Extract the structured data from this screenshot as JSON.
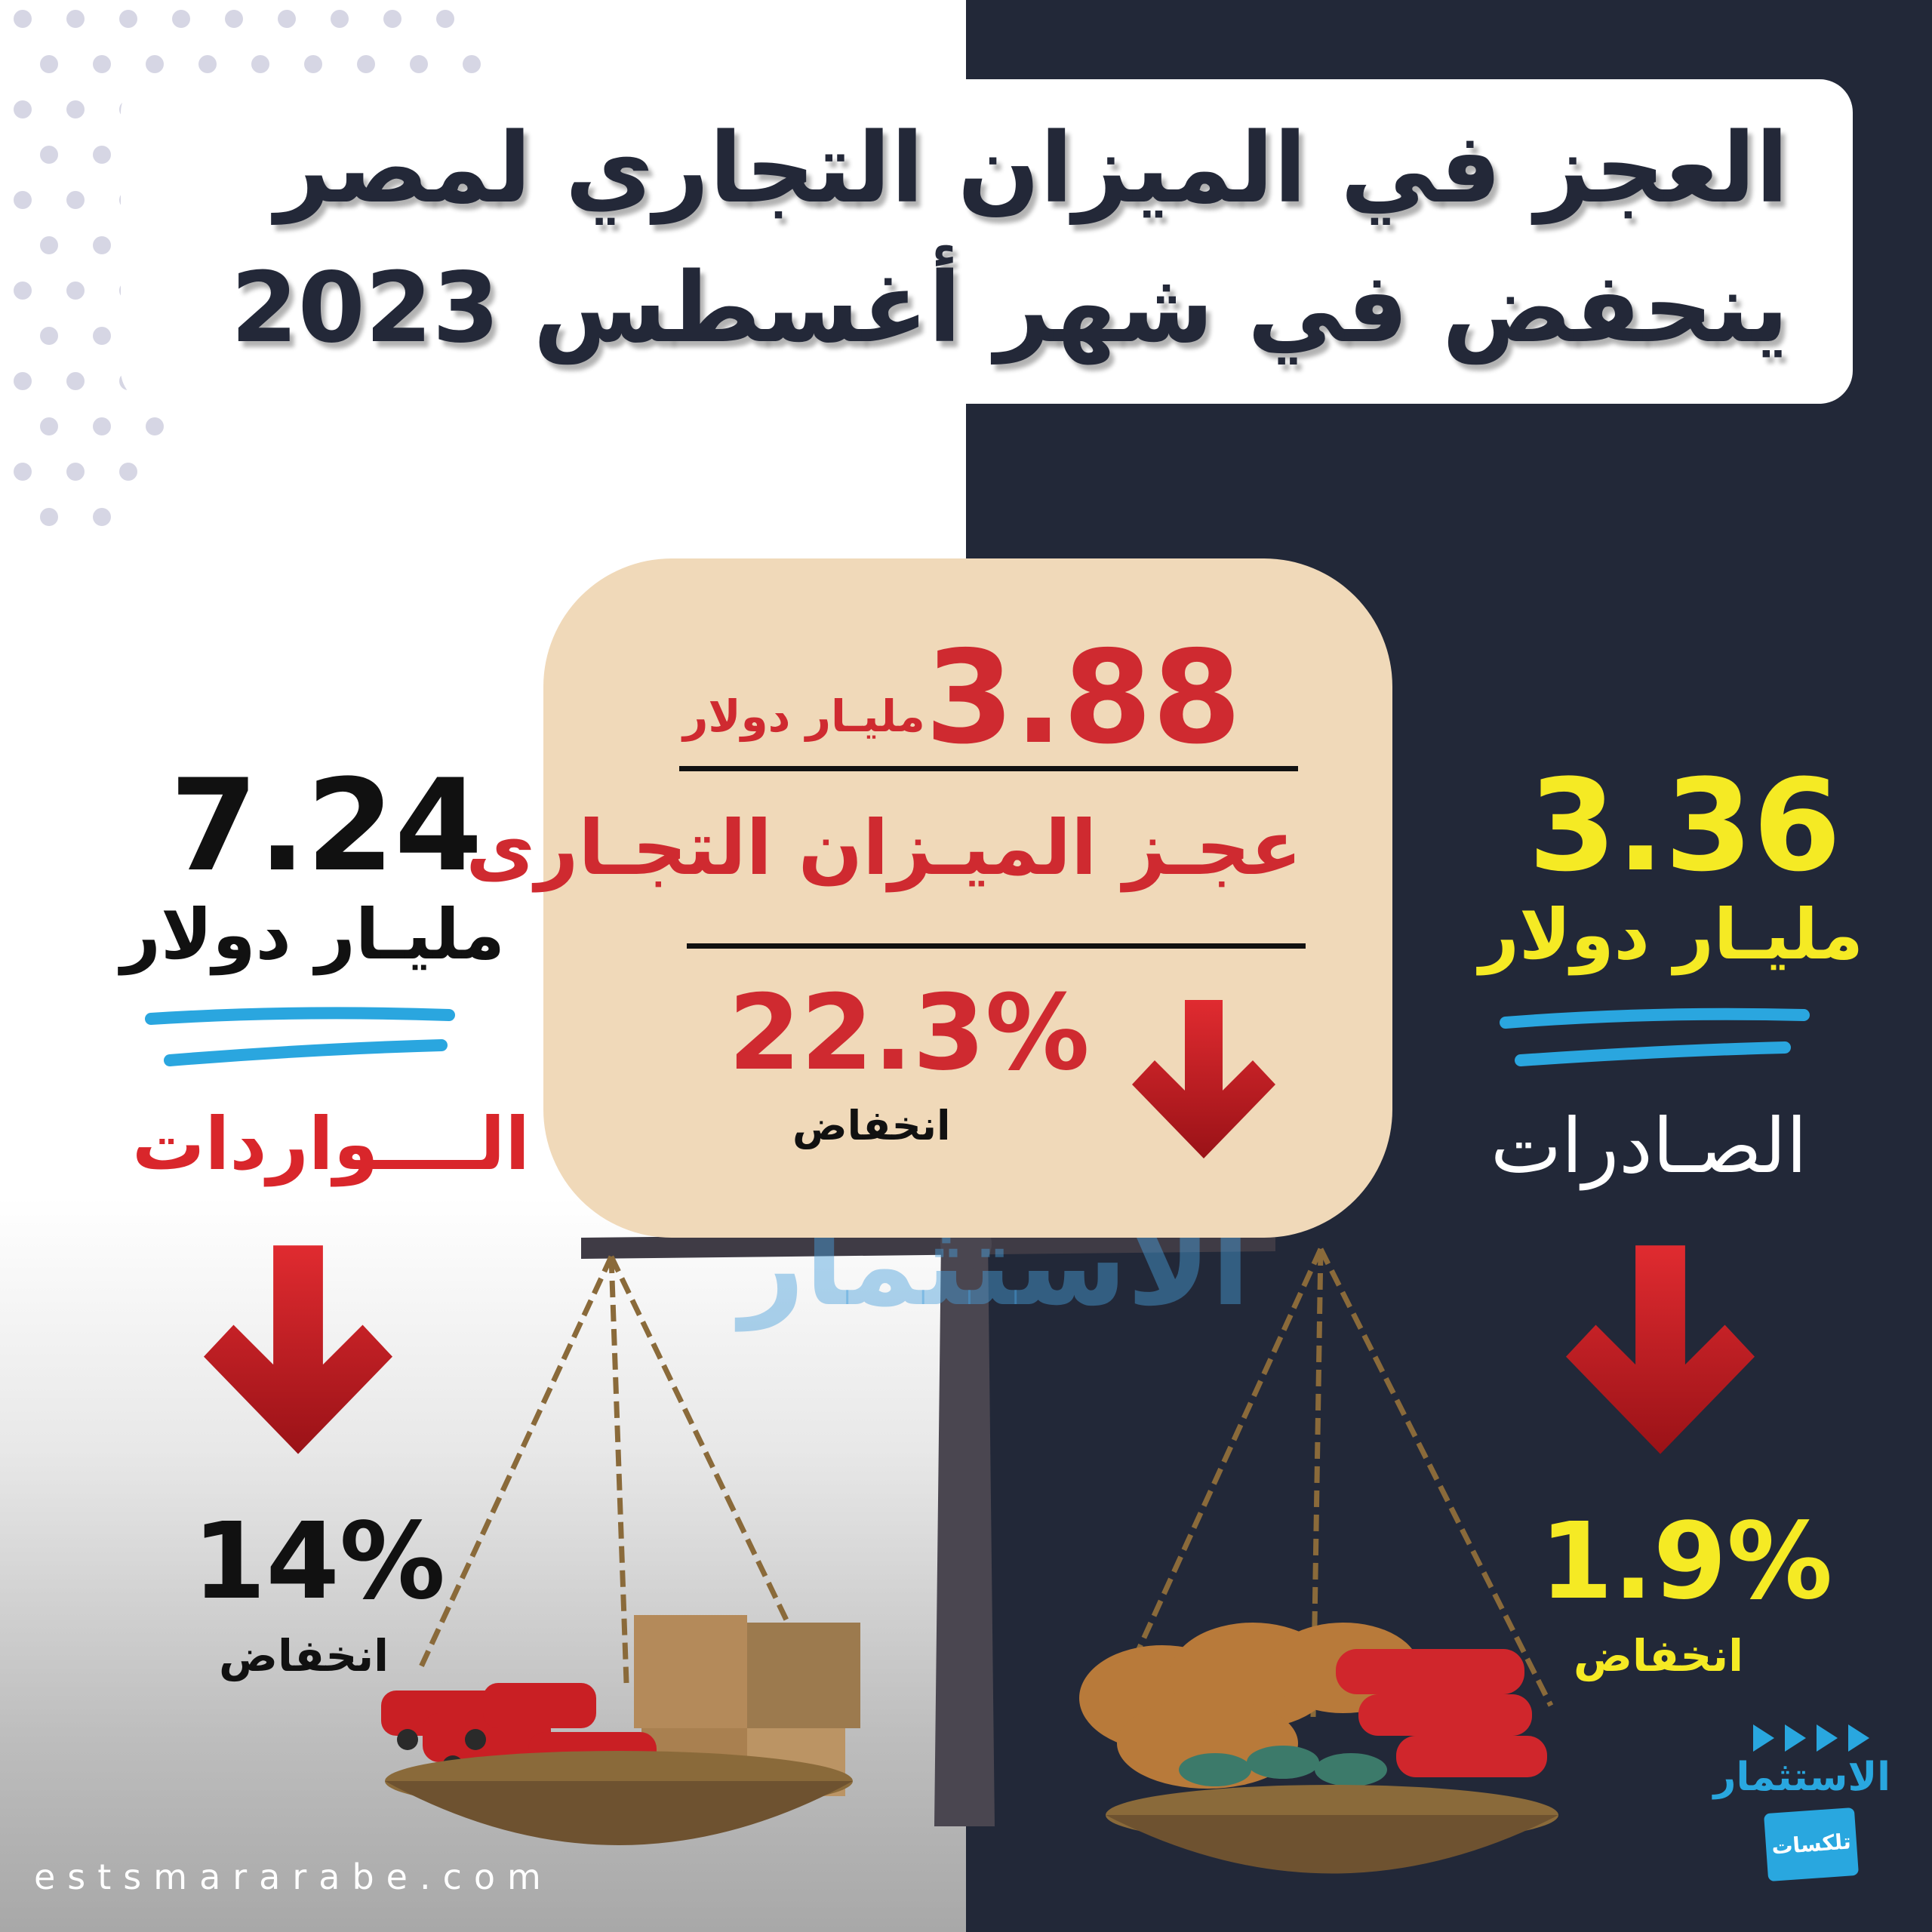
{
  "title": {
    "line1": "العجز في الميزان التجاري  لمصر",
    "line2": "ينحفض في شهر أغسطس 2023"
  },
  "deficit": {
    "value": "3.88",
    "unit": "مليـار دولار",
    "label": "عجـز الميـزان التجـارى",
    "change": "22.3%",
    "change_label": "انخفاض"
  },
  "imports": {
    "value": "7.24",
    "unit": "مليـار دولار",
    "label": "الــــواردات",
    "change": "14%",
    "change_label": "انخفاض"
  },
  "exports": {
    "value": "3.36",
    "unit": "مليـار دولار",
    "label": "الصـادرات",
    "change": "1.9%",
    "change_label": "انخفاض"
  },
  "watermark": "الاستثمار",
  "logo": {
    "name": "الاستثمار",
    "sub": "تلكسات"
  },
  "website": "estsmararabe.com",
  "colors": {
    "dark_bg": "#222838",
    "accent_red": "#cf2a30",
    "accent_yellow": "#f5ea24",
    "accent_blue": "#29a7df",
    "box_beige": "#f0d9b9"
  }
}
